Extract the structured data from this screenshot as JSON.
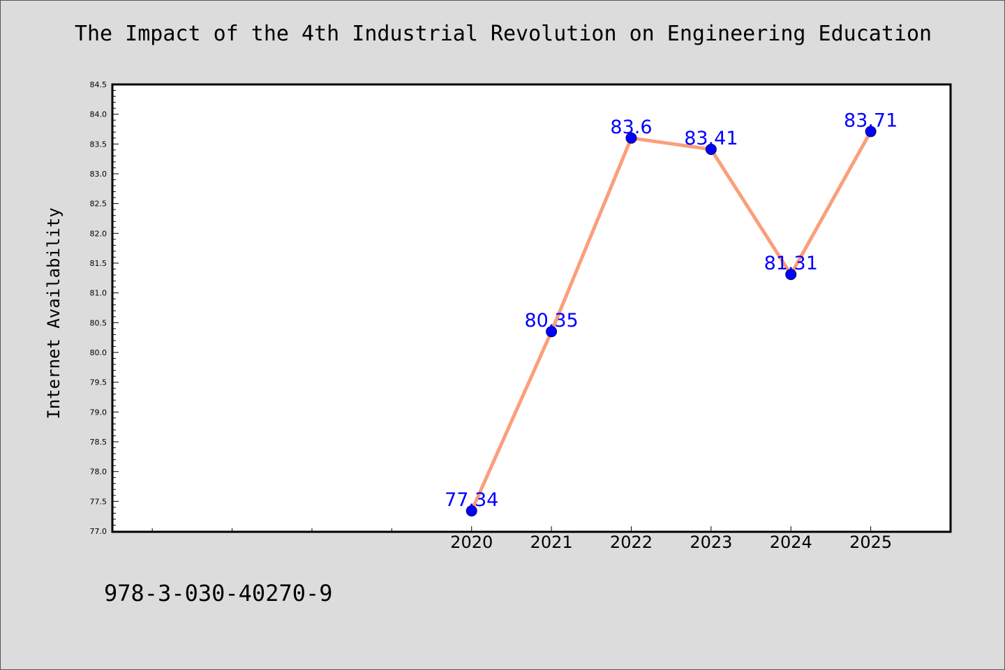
{
  "header": {
    "isbn": "978-3-030-40270-9"
  },
  "chart_data": {
    "type": "line",
    "title": "The Impact of the 4th Industrial Revolution on Engineering Education",
    "xlabel": "",
    "ylabel": "Internet Availability",
    "categories": [
      "2020",
      "2021",
      "2022",
      "2023",
      "2024",
      "2025"
    ],
    "series": [
      {
        "values": [
          77.34,
          80.35,
          83.6,
          83.41,
          81.31,
          83.71
        ],
        "labels": [
          "77.34",
          "80.35",
          "83.6",
          "83.41",
          "81.31",
          "83.71"
        ]
      }
    ],
    "ylim": [
      77.0,
      84.5
    ],
    "y_ticks": [
      "77.0",
      "77.5",
      "78.0",
      "78.5",
      "79.0",
      "79.5",
      "80.0",
      "80.5",
      "81.0",
      "81.5",
      "82.0",
      "82.5",
      "83.0",
      "83.5",
      "84.0",
      "84.5"
    ],
    "x_unlabeled_ticks": 4,
    "grid": false,
    "colors": {
      "line": "#fa9f7b",
      "marker": "#0000ff",
      "label": "#0000ff",
      "background": "#dcdcdc",
      "plot_area": "#ffffff"
    }
  }
}
